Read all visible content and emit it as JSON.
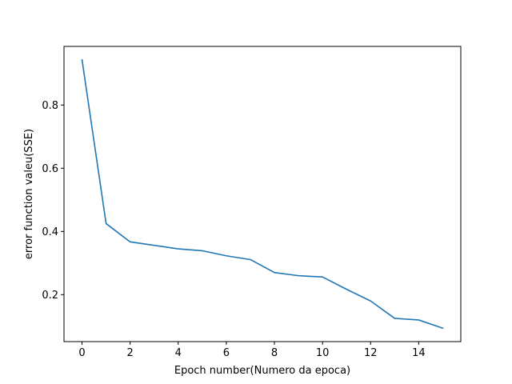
{
  "chart_data": {
    "type": "line",
    "title": "",
    "xlabel": "Epoch number(Numero da epoca)",
    "ylabel": "error function valeu(SSE)",
    "xlim": [
      -0.75,
      15.75
    ],
    "ylim": [
      0.0515,
      0.9855
    ],
    "xticks": [
      0,
      2,
      4,
      6,
      8,
      10,
      12,
      14
    ],
    "yticks": [
      0.2,
      0.4,
      0.6,
      0.8
    ],
    "xtick_labels": [
      "0",
      "2",
      "4",
      "6",
      "8",
      "10",
      "12",
      "14"
    ],
    "ytick_labels": [
      "0.2",
      "0.4",
      "0.6",
      "0.8"
    ],
    "grid": false,
    "series": [
      {
        "color": "#1f77b4",
        "x": [
          0,
          1,
          2,
          3,
          4,
          5,
          6,
          7,
          8,
          9,
          10,
          11,
          12,
          13,
          14,
          15
        ],
        "y": [
          0.943,
          0.425,
          0.367,
          0.356,
          0.345,
          0.339,
          0.323,
          0.311,
          0.27,
          0.26,
          0.256,
          0.217,
          0.18,
          0.125,
          0.12,
          0.094
        ]
      }
    ]
  }
}
